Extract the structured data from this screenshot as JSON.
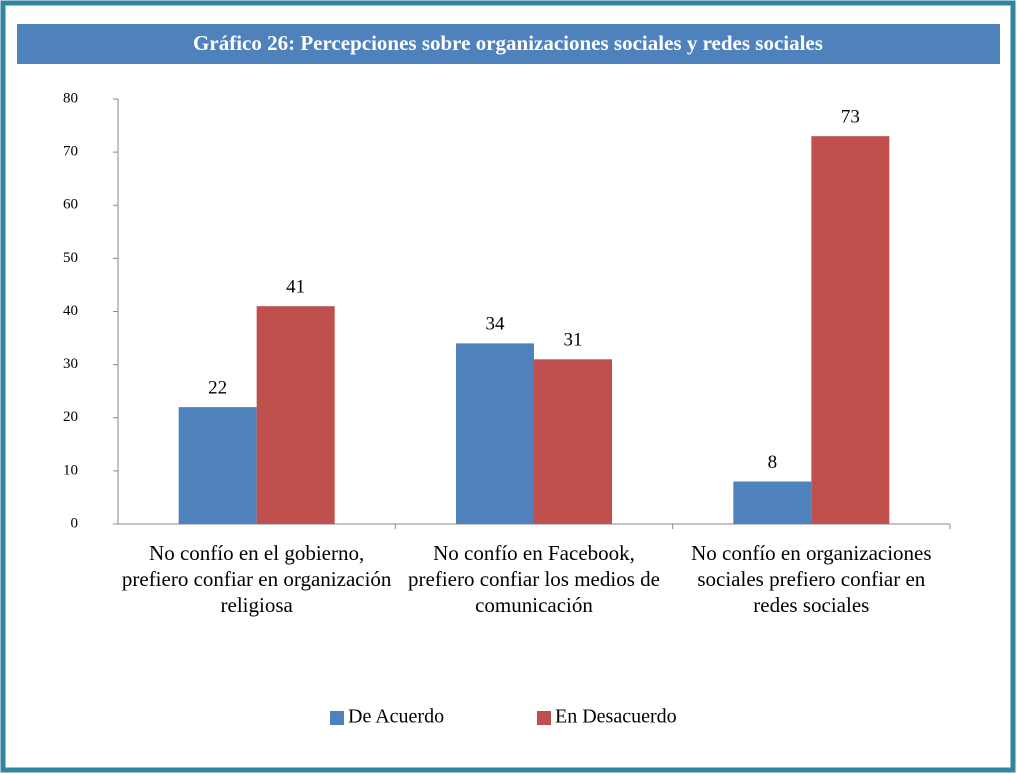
{
  "chart_data": {
    "type": "bar",
    "title": "Gráfico 26: Percepciones sobre organizaciones sociales y redes sociales",
    "categories": [
      "No confío en el gobierno, prefiero confiar en organización religiosa",
      "No confío en Facebook, prefiero confiar los medios de comunicación",
      "No confío en organizaciones sociales prefiero confiar en redes sociales"
    ],
    "series": [
      {
        "name": "De Acuerdo",
        "color": "#4f81bd",
        "values": [
          22,
          34,
          8
        ]
      },
      {
        "name": "En Desacuerdo",
        "color": "#c0504d",
        "values": [
          41,
          31,
          73
        ]
      }
    ],
    "ylim": [
      0,
      80
    ],
    "yticks": [
      0,
      10,
      20,
      30,
      40,
      50,
      60,
      70,
      80
    ],
    "grid": false,
    "legend": "bottom"
  }
}
